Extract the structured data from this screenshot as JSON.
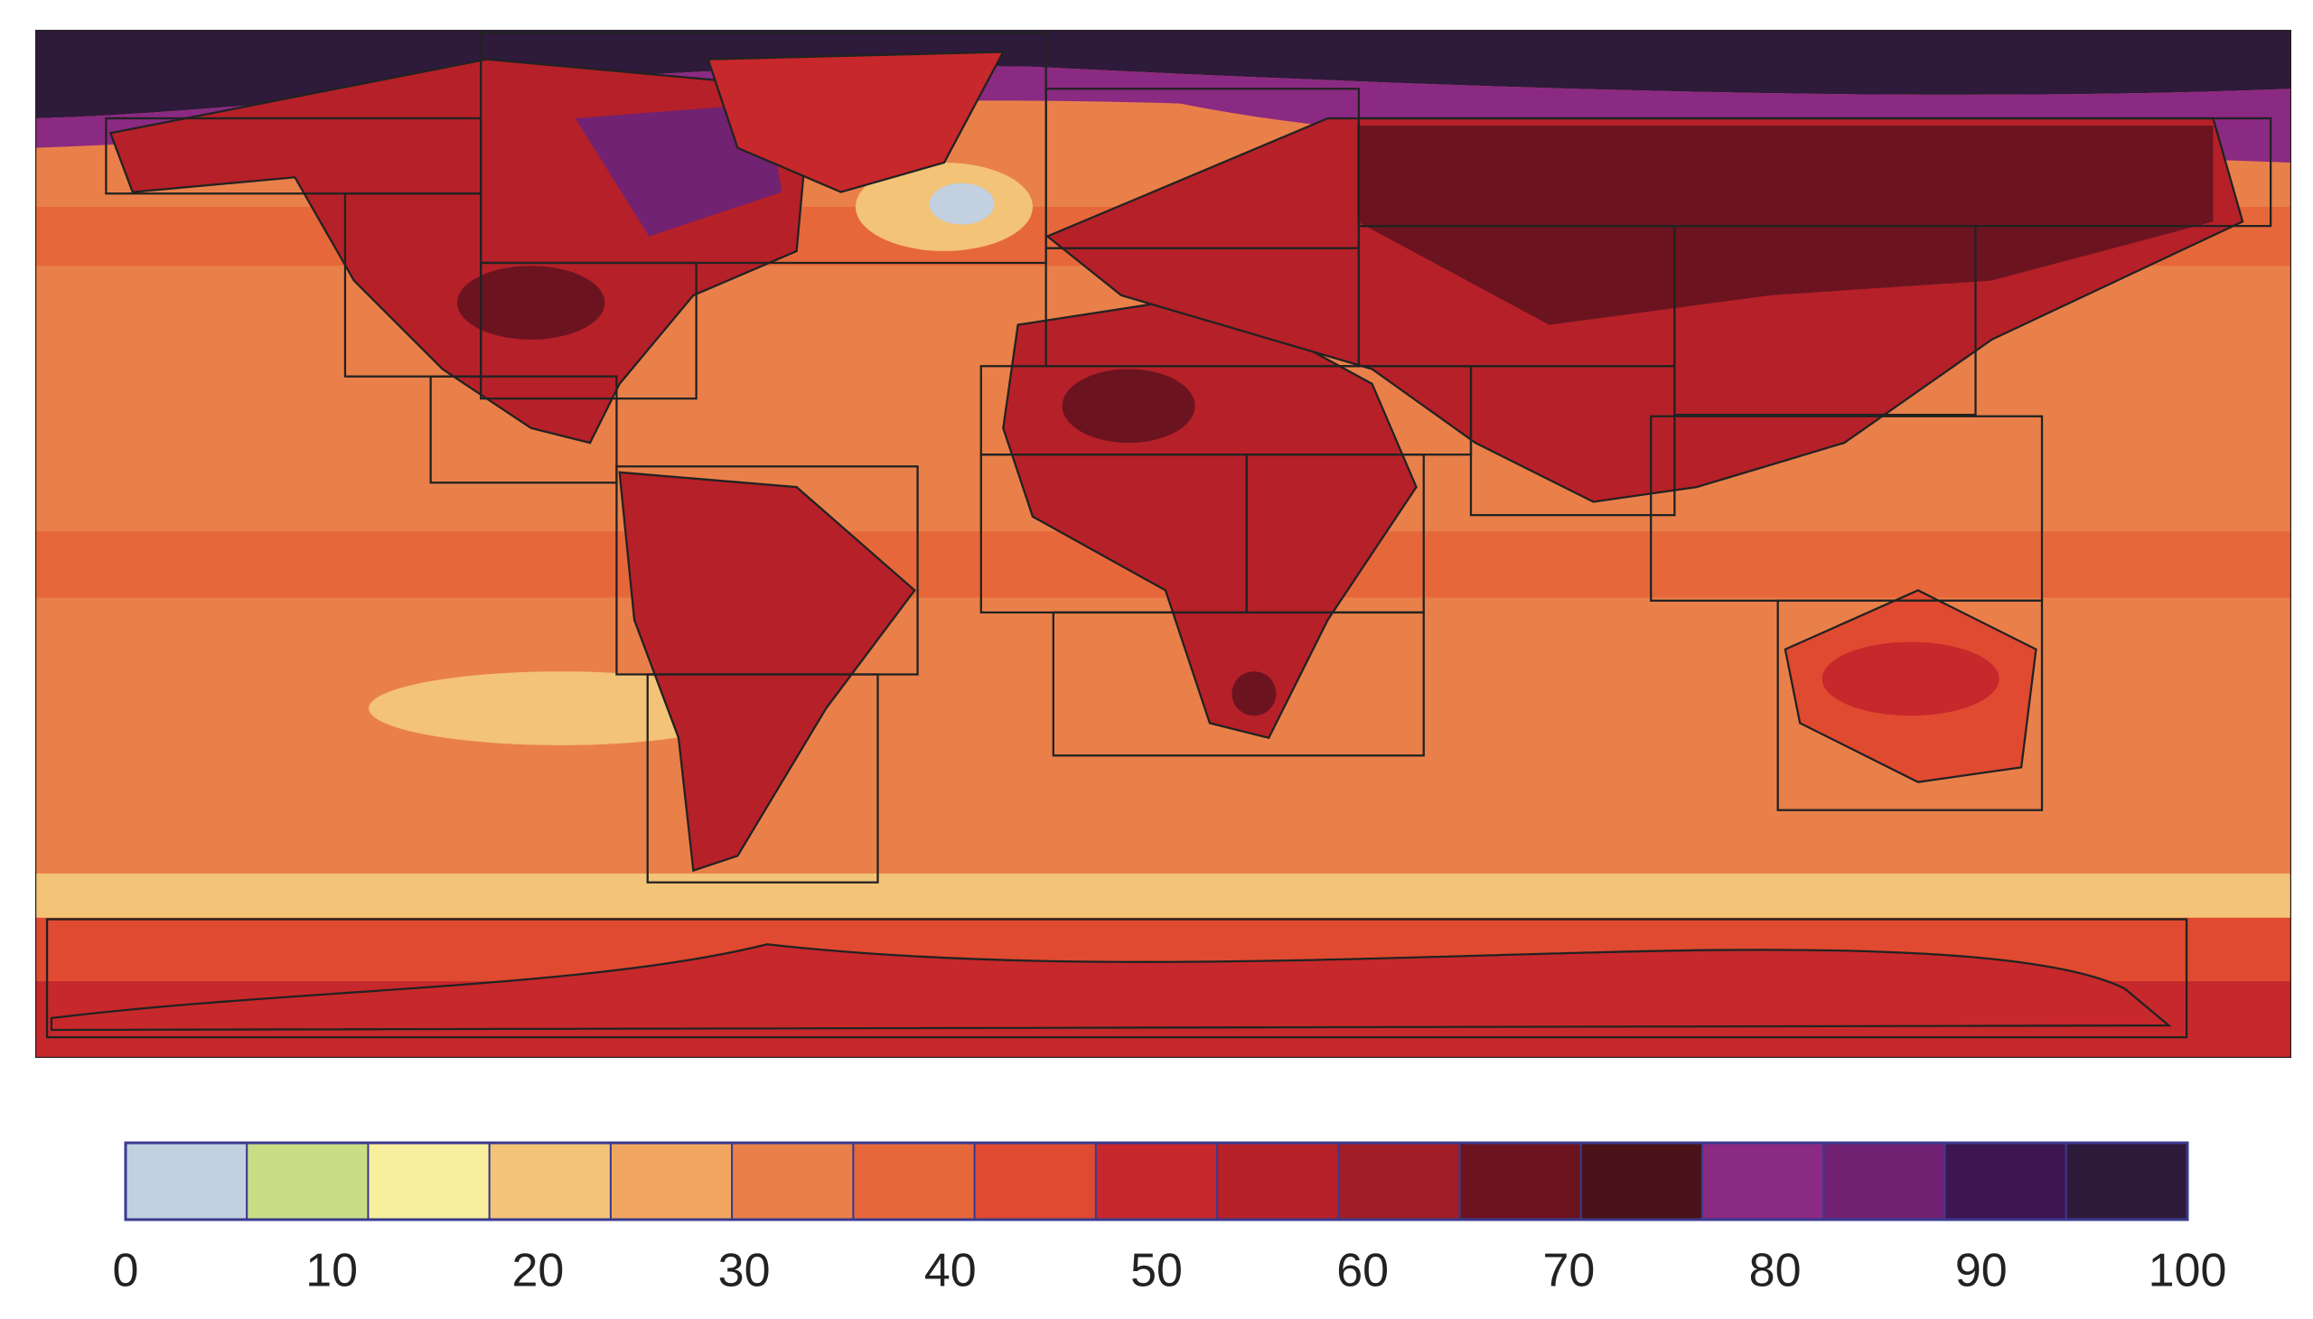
{
  "colorbar": {
    "lim": [
      0,
      100
    ],
    "ticks": [
      0,
      10,
      20,
      30,
      40,
      50,
      60,
      70,
      80,
      90,
      100
    ],
    "colors": [
      "#c2d0e0",
      "#c9de84",
      "#f8ef9e",
      "#f3c377",
      "#f1a65f",
      "#e9804a",
      "#e6683a",
      "#e04a30",
      "#c7282b",
      "#b62028",
      "#a11d25",
      "#6b1420",
      "#4b1319",
      "#8b2a82",
      "#712272",
      "#3d1550",
      "#2e1a3a"
    ]
  }
}
